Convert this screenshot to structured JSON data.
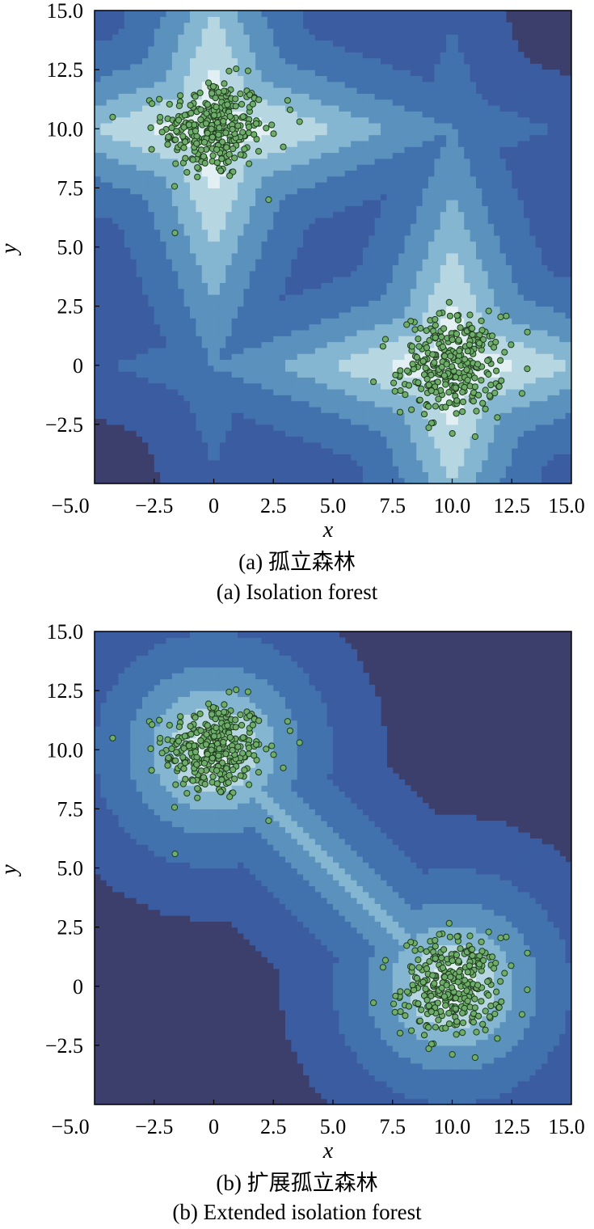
{
  "chart_data": [
    {
      "type": "contour",
      "panel": "a",
      "caption_cn": "(a) 孤立森林",
      "caption_en": "(a) Isolation forest",
      "xlabel": "x",
      "ylabel": "y",
      "xlim": [
        -5.0,
        15.0
      ],
      "ylim": [
        -5.0,
        15.0
      ],
      "xticks": [
        "−5.0",
        "−2.5",
        "0",
        "2.5",
        "5.0",
        "7.5",
        "10.0",
        "12.5",
        "15.0"
      ],
      "yticks": [
        "−2.5",
        "0",
        "2.5",
        "5.0",
        "7.5",
        "10.0",
        "12.5",
        "15.0"
      ],
      "clusters": [
        {
          "center": [
            0,
            10
          ],
          "approx_points": 300
        },
        {
          "center": [
            10,
            0
          ],
          "approx_points": 300
        }
      ],
      "outliers": [
        [
          3.1,
          11.2
        ],
        [
          3.2,
          10.8
        ],
        [
          3.6,
          10.3
        ],
        [
          2.3,
          7.0
        ],
        [
          6.7,
          -0.7
        ],
        [
          7.2,
          1.1
        ],
        [
          7.1,
          0.8
        ],
        [
          7.6,
          -1.1
        ]
      ],
      "colors": {
        "point_fill": "#6fae6a",
        "point_edge": "#1d3a1d",
        "contour_levels": [
          "#3c3e6b",
          "#3b5ca0",
          "#4272ae",
          "#5b91bd",
          "#85b6d1",
          "#b6d6e2",
          "#e2eff3"
        ]
      }
    },
    {
      "type": "contour",
      "panel": "b",
      "caption_cn": "(b) 扩展孤立森林",
      "caption_en": "(b) Extended isolation forest",
      "xlabel": "x",
      "ylabel": "y",
      "xlim": [
        -5.0,
        15.0
      ],
      "ylim": [
        -5.0,
        15.0
      ],
      "xticks": [
        "−5.0",
        "−2.5",
        "0",
        "2.5",
        "5.0",
        "7.5",
        "10.0",
        "12.5",
        "15.0"
      ],
      "yticks": [
        "−2.5",
        "0",
        "2.5",
        "5.0",
        "7.5",
        "10.0",
        "12.5",
        "15.0"
      ],
      "clusters": [
        {
          "center": [
            0,
            10
          ],
          "approx_points": 300
        },
        {
          "center": [
            10,
            0
          ],
          "approx_points": 300
        }
      ],
      "outliers": [
        [
          3.1,
          11.2
        ],
        [
          3.2,
          10.8
        ],
        [
          3.6,
          10.3
        ],
        [
          2.3,
          7.0
        ],
        [
          6.7,
          -0.7
        ],
        [
          7.2,
          1.1
        ],
        [
          7.1,
          0.8
        ],
        [
          7.6,
          -1.1
        ]
      ],
      "colors": {
        "point_fill": "#6fae6a",
        "point_edge": "#1d3a1d",
        "contour_levels": [
          "#3c3e6b",
          "#3b5ca0",
          "#4272ae",
          "#5b91bd",
          "#85b6d1",
          "#b6d6e2",
          "#e2eff3"
        ]
      }
    }
  ]
}
